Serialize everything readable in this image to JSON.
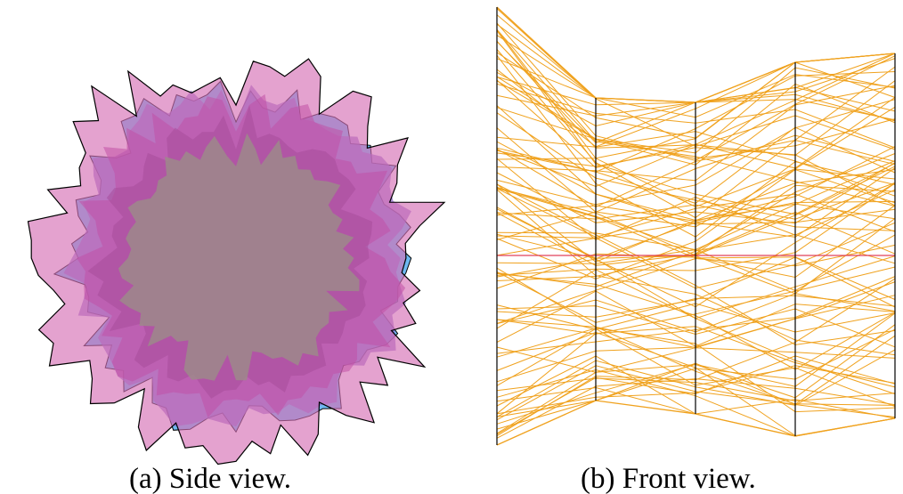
{
  "figure": {
    "panels": [
      {
        "id": "a",
        "caption": "(a)  Side view."
      },
      {
        "id": "b",
        "caption": "(b)  Front view."
      }
    ]
  },
  "colors": {
    "star_outline": "#000000",
    "layer_pink": "#d670b5",
    "layer_mid": "#c150a6",
    "layer_dark": "#a84d9a",
    "layer_core": "#9d8a8a",
    "layer_blue": "#4aa8ee",
    "layer_purple": "#8b63c7",
    "orange_line": "#f0a21e",
    "axis_line": "#000000",
    "highlight_line": "#e0405a"
  }
}
